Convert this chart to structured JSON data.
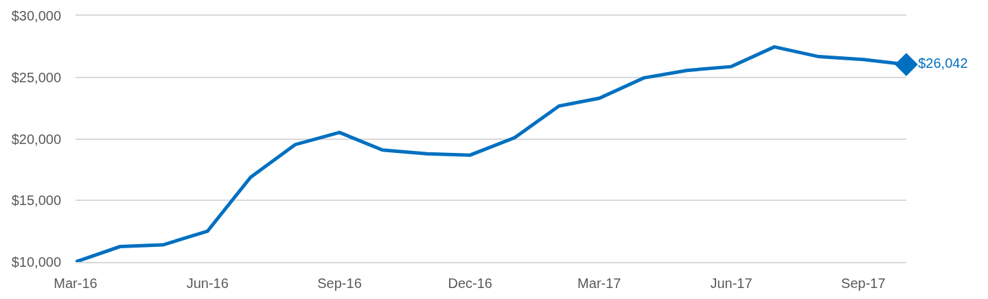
{
  "chart_data": {
    "type": "line",
    "x": [
      "2016-03",
      "2016-04",
      "2016-05",
      "2016-06",
      "2016-07",
      "2016-08",
      "2016-09",
      "2016-10",
      "2016-11",
      "2016-12",
      "2017-01",
      "2017-02",
      "2017-03",
      "2017-04",
      "2017-05",
      "2017-06",
      "2017-07",
      "2017-08",
      "2017-09",
      "2017-10"
    ],
    "series": [
      {
        "color": "#0070c0",
        "line_style": "solid",
        "values": [
          10000,
          11250,
          11390,
          12500,
          16880,
          19530,
          20520,
          19090,
          18790,
          18680,
          20090,
          22670,
          23300,
          24950,
          25560,
          25870,
          27470,
          26680,
          26450,
          26042
        ]
      },
      {
        "type": "scatter",
        "marker": "diamond",
        "color": "#0070c0",
        "x": [
          "2017-10"
        ],
        "values": [
          26042
        ],
        "value_labels": [
          "$26,042"
        ]
      }
    ],
    "xlim": [
      "2016-03",
      "2017-10"
    ],
    "xticks": [
      {
        "value": "2016-03",
        "label": "Mar-16"
      },
      {
        "value": "2016-06",
        "label": "Jun-16"
      },
      {
        "value": "2016-09",
        "label": "Sep-16"
      },
      {
        "value": "2016-12",
        "label": "Dec-16"
      },
      {
        "value": "2017-03",
        "label": "Mar-17"
      },
      {
        "value": "2017-06",
        "label": "Jun-17"
      },
      {
        "value": "2017-09",
        "label": "Sep-17"
      }
    ],
    "ylim": [
      10000,
      30000
    ],
    "yticks": [
      {
        "value": 10000,
        "label": "$10,000"
      },
      {
        "value": 15000,
        "label": "$15,000"
      },
      {
        "value": 20000,
        "label": "$20,000"
      },
      {
        "value": 25000,
        "label": "$25,000"
      },
      {
        "value": 30000,
        "label": "$30,000"
      }
    ],
    "grid": "y"
  }
}
